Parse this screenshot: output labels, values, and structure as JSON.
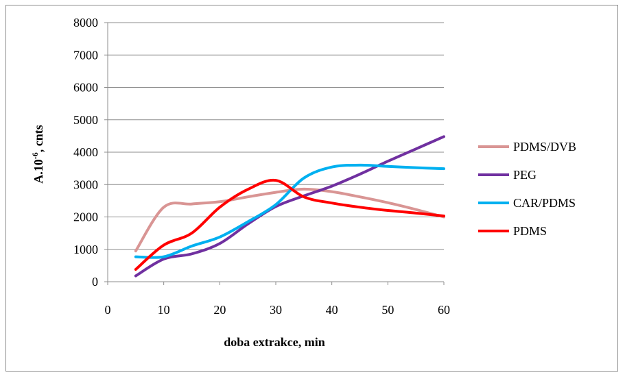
{
  "chart_data": {
    "type": "line",
    "title": "",
    "xlabel": "doba extrakce, min",
    "ylabel_main": "A.10",
    "ylabel_sup": "-6",
    "ylabel_rest": ", cnts",
    "xlim": [
      0,
      60
    ],
    "ylim": [
      0,
      8000
    ],
    "xticks": [
      "0",
      "10",
      "20",
      "30",
      "40",
      "50",
      "60"
    ],
    "yticks": [
      "0",
      "1000",
      "2000",
      "3000",
      "4000",
      "5000",
      "6000",
      "7000",
      "8000"
    ],
    "grid": "horizontal",
    "legend_position": "right",
    "x": [
      5,
      10,
      15,
      20,
      25,
      30,
      35,
      40,
      45,
      50,
      55,
      60
    ],
    "series": [
      {
        "name": "PDMS/DVB",
        "color": "#d99594",
        "values": [
          950,
          2300,
          2400,
          2470,
          2620,
          2760,
          2860,
          2780,
          2620,
          2440,
          2230,
          2000
        ]
      },
      {
        "name": "PEG",
        "color": "#7030a0",
        "values": [
          180,
          700,
          860,
          1180,
          1780,
          2320,
          2650,
          2950,
          3320,
          3720,
          4100,
          4480
        ]
      },
      {
        "name": "CAR/PDMS",
        "color": "#00b0f0",
        "values": [
          770,
          770,
          1100,
          1380,
          1850,
          2380,
          3200,
          3540,
          3600,
          3560,
          3520,
          3490
        ]
      },
      {
        "name": "PDMS",
        "color": "#ff0000",
        "values": [
          380,
          1130,
          1500,
          2300,
          2850,
          3130,
          2620,
          2430,
          2300,
          2200,
          2120,
          2030
        ]
      }
    ]
  }
}
